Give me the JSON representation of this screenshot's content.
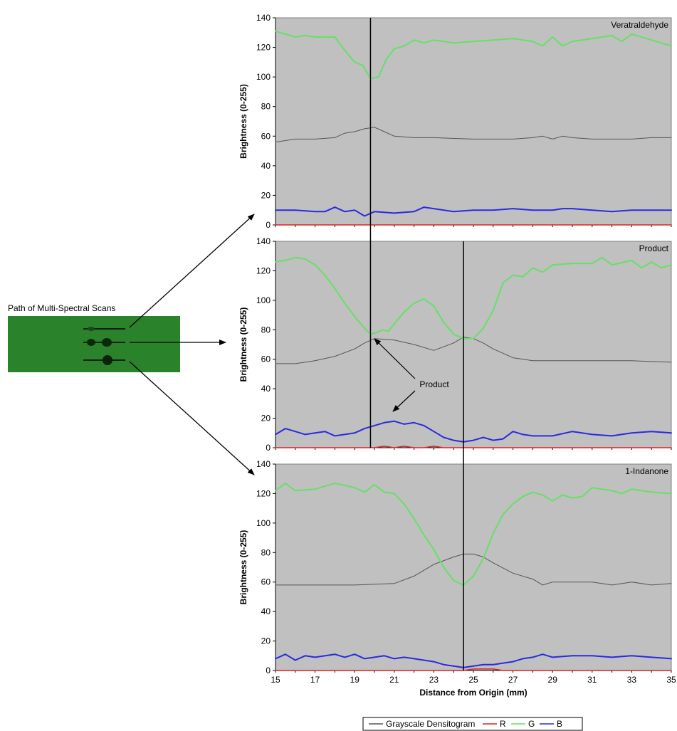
{
  "scan_caption": "Path of Multi-Spectral Scans",
  "annotation": "Product",
  "colors": {
    "panel_bg": "#c0c0c0",
    "gray": "#555555",
    "R": "#e02020",
    "G": "#66e066",
    "B": "#2a2ae0",
    "plate": "#2e8b2e",
    "plate_dark": "#1f6b1f"
  },
  "legend": [
    {
      "name": "Grayscale Densitogram",
      "color": "#555555"
    },
    {
      "name": "R",
      "color": "#e02020"
    },
    {
      "name": "G",
      "color": "#66e066"
    },
    {
      "name": "B",
      "color": "#2a2ae0"
    }
  ],
  "chart_data": [
    {
      "type": "line",
      "title": "Veratraldehyde",
      "xlabel": "",
      "ylabel": "Brightness (0-255)",
      "xlim": [
        15,
        35
      ],
      "ylim": [
        0,
        140
      ],
      "yticks": [
        0,
        20,
        40,
        60,
        80,
        100,
        120,
        140
      ],
      "xticks": [],
      "grid": false,
      "series": [
        {
          "name": "G",
          "x": [
            15,
            16,
            16.5,
            17,
            18,
            18.5,
            19,
            19.4,
            19.8,
            20.2,
            20.6,
            21,
            21.5,
            22,
            22.5,
            23,
            24,
            25,
            26,
            27,
            28,
            28.5,
            29,
            29.5,
            30,
            31,
            32,
            32.5,
            33,
            34,
            35
          ],
          "y": [
            131,
            127,
            128,
            127,
            127,
            118,
            110,
            108,
            99,
            100,
            112,
            119,
            121,
            125,
            123,
            125,
            123,
            124,
            125,
            126,
            124,
            121,
            127,
            121,
            124,
            126,
            128,
            124,
            129,
            125,
            121
          ]
        },
        {
          "name": "Grayscale Densitogram",
          "x": [
            15,
            16,
            17,
            18,
            18.5,
            19,
            19.5,
            20,
            20.5,
            21,
            22,
            23,
            25,
            27,
            28,
            28.5,
            29,
            29.5,
            30,
            31,
            32,
            33,
            34,
            35
          ],
          "y": [
            56,
            58,
            58,
            59,
            62,
            63,
            65,
            66,
            63,
            60,
            59,
            59,
            58,
            58,
            59,
            60,
            58,
            60,
            59,
            58,
            58,
            58,
            59,
            59
          ]
        },
        {
          "name": "B",
          "x": [
            15,
            16,
            17,
            17.5,
            18,
            18.5,
            19,
            19.5,
            20,
            21,
            22,
            22.5,
            23,
            24,
            25,
            26,
            27,
            28,
            29,
            29.5,
            30,
            31,
            32,
            33,
            34,
            35
          ],
          "y": [
            10,
            10,
            9,
            9,
            12,
            9,
            10,
            6,
            9,
            8,
            9,
            12,
            11,
            9,
            10,
            10,
            11,
            10,
            10,
            11,
            11,
            10,
            9,
            10,
            10,
            10
          ]
        },
        {
          "name": "R",
          "x": [
            15,
            35
          ],
          "y": [
            0,
            0
          ]
        }
      ],
      "markers_x": [
        19.8
      ]
    },
    {
      "type": "line",
      "title": "Product",
      "xlabel": "",
      "ylabel": "Brightness (0-255)",
      "xlim": [
        15,
        35
      ],
      "ylim": [
        0,
        140
      ],
      "yticks": [
        0,
        20,
        40,
        60,
        80,
        100,
        120,
        140
      ],
      "xticks": [],
      "grid": false,
      "series": [
        {
          "name": "G",
          "x": [
            15,
            15.5,
            16,
            16.5,
            17,
            17.5,
            18,
            18.5,
            19,
            19.5,
            19.8,
            20.1,
            20.4,
            20.7,
            21,
            21.5,
            22,
            22.5,
            23,
            23.5,
            24,
            24.5,
            25,
            25.5,
            26,
            26.5,
            27,
            27.5,
            28,
            28.5,
            29,
            30,
            31,
            31.5,
            32,
            33,
            33.5,
            34,
            34.5,
            35
          ],
          "y": [
            126,
            127,
            129,
            128,
            124,
            117,
            108,
            98,
            89,
            81,
            77,
            78,
            80,
            79,
            84,
            92,
            98,
            101,
            96,
            85,
            77,
            74,
            74,
            81,
            93,
            112,
            117,
            116,
            122,
            119,
            124,
            125,
            125,
            129,
            124,
            127,
            122,
            126,
            122,
            124
          ]
        },
        {
          "name": "Grayscale Densitogram",
          "x": [
            15,
            16,
            17,
            18,
            19,
            19.5,
            20,
            21,
            22,
            23,
            24,
            24.5,
            25,
            25.5,
            26,
            27,
            28,
            29,
            31,
            33,
            35
          ],
          "y": [
            57,
            57,
            59,
            62,
            67,
            71,
            74,
            73,
            70,
            66,
            71,
            75,
            74,
            71,
            67,
            61,
            59,
            59,
            59,
            59,
            58
          ]
        },
        {
          "name": "B",
          "x": [
            15,
            15.5,
            16,
            16.5,
            17,
            17.5,
            18,
            18.5,
            19,
            19.5,
            20,
            20.5,
            21,
            21.5,
            22,
            22.5,
            23,
            23.5,
            24,
            24.5,
            25,
            25.5,
            26,
            26.5,
            27,
            27.5,
            28,
            29,
            30,
            31,
            32,
            33,
            34,
            35
          ],
          "y": [
            9,
            13,
            11,
            9,
            10,
            11,
            8,
            9,
            10,
            13,
            15,
            17,
            18,
            16,
            17,
            15,
            11,
            7,
            5,
            4,
            5,
            7,
            5,
            6,
            11,
            9,
            8,
            8,
            11,
            9,
            8,
            10,
            11,
            10
          ]
        },
        {
          "name": "R",
          "x": [
            15,
            20,
            20.5,
            21,
            21.5,
            22,
            22.5,
            23,
            23.5,
            24,
            35
          ],
          "y": [
            0,
            0,
            1,
            0,
            1,
            0,
            0,
            1,
            0,
            0,
            0
          ]
        }
      ],
      "markers_x": [
        19.8,
        24.5
      ]
    },
    {
      "type": "line",
      "title": "1-Indanone",
      "xlabel": "Distance from Origin (mm)",
      "ylabel": "Brightness (0-255)",
      "xlim": [
        15,
        35
      ],
      "ylim": [
        0,
        140
      ],
      "yticks": [
        0,
        20,
        40,
        60,
        80,
        100,
        120,
        140
      ],
      "xticks": [
        15,
        17,
        19,
        21,
        23,
        25,
        27,
        29,
        31,
        33,
        35
      ],
      "grid": false,
      "series": [
        {
          "name": "G",
          "x": [
            15,
            15.5,
            16,
            17,
            18,
            19,
            19.5,
            20,
            20.5,
            21,
            21.5,
            22,
            22.5,
            23,
            23.5,
            24,
            24.5,
            25,
            25.5,
            26,
            26.5,
            27,
            27.5,
            28,
            28.5,
            29,
            29.5,
            30,
            30.5,
            31,
            32,
            32.5,
            33,
            34,
            35
          ],
          "y": [
            122,
            127,
            122,
            123,
            127,
            124,
            121,
            126,
            121,
            120,
            113,
            103,
            92,
            82,
            70,
            61,
            58,
            64,
            76,
            93,
            106,
            113,
            118,
            121,
            119,
            115,
            119,
            117,
            118,
            124,
            122,
            120,
            123,
            121,
            120
          ]
        },
        {
          "name": "Grayscale Densitogram",
          "x": [
            15,
            17,
            19,
            21,
            22,
            23,
            24,
            24.5,
            25,
            25.5,
            26,
            27,
            28,
            28.5,
            29,
            30,
            31,
            32,
            33,
            34,
            35
          ],
          "y": [
            58,
            58,
            58,
            59,
            64,
            72,
            77,
            79,
            79,
            77,
            73,
            66,
            62,
            58,
            60,
            60,
            60,
            58,
            60,
            58,
            59
          ]
        },
        {
          "name": "B",
          "x": [
            15,
            15.5,
            16,
            16.5,
            17,
            18,
            18.5,
            19,
            19.5,
            20,
            20.5,
            21,
            21.5,
            22,
            22.5,
            23,
            23.5,
            24,
            24.5,
            25,
            25.5,
            26,
            26.5,
            27,
            27.5,
            28,
            28.5,
            29,
            30,
            31,
            32,
            33,
            34,
            35
          ],
          "y": [
            8,
            11,
            7,
            10,
            9,
            11,
            9,
            11,
            8,
            9,
            10,
            8,
            9,
            8,
            7,
            6,
            4,
            3,
            2,
            3,
            4,
            4,
            5,
            6,
            8,
            9,
            11,
            9,
            10,
            10,
            9,
            10,
            9,
            8
          ]
        },
        {
          "name": "R",
          "x": [
            15,
            24.5,
            25,
            25.5,
            26,
            26.5,
            35
          ],
          "y": [
            0,
            0,
            1,
            1,
            1,
            0,
            0
          ]
        }
      ],
      "markers_x": [
        24.5
      ]
    }
  ]
}
